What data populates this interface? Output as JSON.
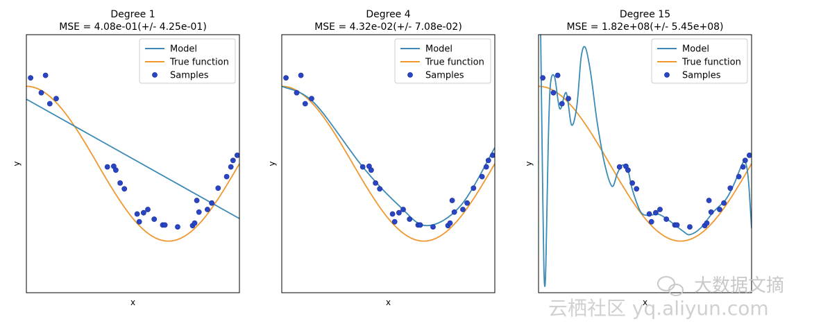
{
  "colors": {
    "model": "#3a8ab5",
    "true_function": "#f0972e",
    "samples": "#2a45c4",
    "samples_edge": "#1a2d96",
    "watermark": "#c8c8c8"
  },
  "legend": {
    "model": "Model",
    "true_function": "True function",
    "samples": "Samples"
  },
  "watermark": {
    "line1": "大数据文摘",
    "line2": "云栖社区 yq.aliyun.com",
    "logo_icon": "wechat-icon"
  },
  "chart_data": [
    {
      "type": "line",
      "title": "Degree 1",
      "subtitle": "MSE = 4.08e-01(+/- 4.25e-01)",
      "xlabel": "x",
      "ylabel": "y",
      "xlim": [
        0,
        1
      ],
      "ylim": [
        -2,
        2
      ],
      "legend_position": "top-right",
      "model_kind": "linear",
      "model_line": [
        [
          0.0,
          1.0
        ],
        [
          1.0,
          -0.85
        ]
      ],
      "samples": [
        [
          0.02,
          1.33
        ],
        [
          0.07,
          1.1
        ],
        [
          0.09,
          1.37
        ],
        [
          0.11,
          0.93
        ],
        [
          0.14,
          1.01
        ],
        [
          0.38,
          -0.05
        ],
        [
          0.41,
          -0.04
        ],
        [
          0.42,
          -0.1
        ],
        [
          0.44,
          -0.3
        ],
        [
          0.46,
          -0.39
        ],
        [
          0.52,
          -0.78
        ],
        [
          0.53,
          -0.9
        ],
        [
          0.55,
          -0.76
        ],
        [
          0.57,
          -0.71
        ],
        [
          0.6,
          -0.86
        ],
        [
          0.64,
          -0.95
        ],
        [
          0.65,
          -0.95
        ],
        [
          0.71,
          -0.98
        ],
        [
          0.78,
          -0.96
        ],
        [
          0.79,
          -0.92
        ],
        [
          0.8,
          -0.57
        ],
        [
          0.81,
          -0.75
        ],
        [
          0.85,
          -0.71
        ],
        [
          0.87,
          -0.61
        ],
        [
          0.9,
          -0.38
        ],
        [
          0.94,
          -0.2
        ],
        [
          0.96,
          -0.05
        ],
        [
          0.97,
          0.05
        ],
        [
          0.99,
          0.13
        ]
      ]
    },
    {
      "type": "line",
      "title": "Degree 4",
      "subtitle": "MSE = 4.32e-02(+/- 7.08e-02)",
      "xlabel": "x",
      "ylabel": "y",
      "xlim": [
        0,
        1
      ],
      "ylim": [
        -2,
        2
      ],
      "legend_position": "top-right",
      "model_kind": "poly4",
      "model_line": [
        [
          0.0,
          1.2
        ],
        [
          0.15,
          0.95
        ],
        [
          0.38,
          -0.05
        ],
        [
          0.55,
          -0.65
        ],
        [
          0.68,
          -0.96
        ],
        [
          0.84,
          -0.65
        ],
        [
          1.0,
          0.25
        ]
      ],
      "samples": [
        [
          0.02,
          1.33
        ],
        [
          0.07,
          1.1
        ],
        [
          0.09,
          1.37
        ],
        [
          0.11,
          0.93
        ],
        [
          0.14,
          1.01
        ],
        [
          0.38,
          -0.05
        ],
        [
          0.41,
          -0.04
        ],
        [
          0.42,
          -0.1
        ],
        [
          0.44,
          -0.3
        ],
        [
          0.46,
          -0.39
        ],
        [
          0.52,
          -0.78
        ],
        [
          0.53,
          -0.9
        ],
        [
          0.55,
          -0.76
        ],
        [
          0.57,
          -0.71
        ],
        [
          0.6,
          -0.86
        ],
        [
          0.64,
          -0.95
        ],
        [
          0.65,
          -0.95
        ],
        [
          0.71,
          -0.98
        ],
        [
          0.78,
          -0.96
        ],
        [
          0.79,
          -0.92
        ],
        [
          0.8,
          -0.57
        ],
        [
          0.81,
          -0.75
        ],
        [
          0.85,
          -0.71
        ],
        [
          0.87,
          -0.61
        ],
        [
          0.9,
          -0.38
        ],
        [
          0.94,
          -0.2
        ],
        [
          0.96,
          -0.05
        ],
        [
          0.97,
          0.05
        ],
        [
          0.99,
          0.13
        ]
      ]
    },
    {
      "type": "line",
      "title": "Degree 15",
      "subtitle": "MSE = 1.82e+08(+/- 5.45e+08)",
      "xlabel": "x",
      "ylabel": "y",
      "xlim": [
        0,
        1
      ],
      "ylim": [
        -2,
        2
      ],
      "legend_position": "top-right",
      "model_kind": "poly15",
      "model_line": [
        [
          0.0,
          5.0
        ],
        [
          0.01,
          2.0
        ],
        [
          0.02,
          -0.5
        ],
        [
          0.025,
          -1.6
        ],
        [
          0.03,
          -1.9
        ],
        [
          0.035,
          -1.5
        ],
        [
          0.045,
          0.2
        ],
        [
          0.055,
          1.2
        ],
        [
          0.075,
          1.35
        ],
        [
          0.1,
          0.85
        ],
        [
          0.13,
          1.1
        ],
        [
          0.155,
          0.6
        ],
        [
          0.18,
          0.9
        ],
        [
          0.2,
          1.65
        ],
        [
          0.22,
          1.8
        ],
        [
          0.245,
          1.4
        ],
        [
          0.275,
          0.65
        ],
        [
          0.31,
          0.0
        ],
        [
          0.345,
          -0.35
        ],
        [
          0.37,
          -0.15
        ],
        [
          0.395,
          -0.02
        ],
        [
          0.42,
          -0.1
        ],
        [
          0.44,
          -0.4
        ],
        [
          0.48,
          -0.75
        ],
        [
          0.52,
          -0.8
        ],
        [
          0.56,
          -0.78
        ],
        [
          0.6,
          -0.85
        ],
        [
          0.64,
          -0.95
        ],
        [
          0.68,
          -1.05
        ],
        [
          0.71,
          -1.1
        ],
        [
          0.76,
          -1.0
        ],
        [
          0.82,
          -0.75
        ],
        [
          0.88,
          -0.55
        ],
        [
          0.92,
          -0.3
        ],
        [
          0.95,
          -0.05
        ],
        [
          0.97,
          0.03
        ],
        [
          0.985,
          -0.25
        ],
        [
          1.0,
          -1.0
        ]
      ],
      "samples": [
        [
          0.02,
          1.33
        ],
        [
          0.07,
          1.1
        ],
        [
          0.09,
          1.37
        ],
        [
          0.11,
          0.93
        ],
        [
          0.14,
          1.01
        ],
        [
          0.38,
          -0.05
        ],
        [
          0.41,
          -0.04
        ],
        [
          0.42,
          -0.1
        ],
        [
          0.44,
          -0.3
        ],
        [
          0.46,
          -0.39
        ],
        [
          0.52,
          -0.78
        ],
        [
          0.53,
          -0.9
        ],
        [
          0.55,
          -0.76
        ],
        [
          0.57,
          -0.71
        ],
        [
          0.6,
          -0.86
        ],
        [
          0.64,
          -0.95
        ],
        [
          0.65,
          -0.95
        ],
        [
          0.71,
          -0.98
        ],
        [
          0.78,
          -0.96
        ],
        [
          0.79,
          -0.92
        ],
        [
          0.8,
          -0.57
        ],
        [
          0.81,
          -0.75
        ],
        [
          0.85,
          -0.71
        ],
        [
          0.87,
          -0.61
        ],
        [
          0.9,
          -0.38
        ],
        [
          0.94,
          -0.2
        ],
        [
          0.96,
          -0.05
        ],
        [
          0.97,
          0.05
        ],
        [
          0.99,
          0.13
        ]
      ]
    }
  ]
}
